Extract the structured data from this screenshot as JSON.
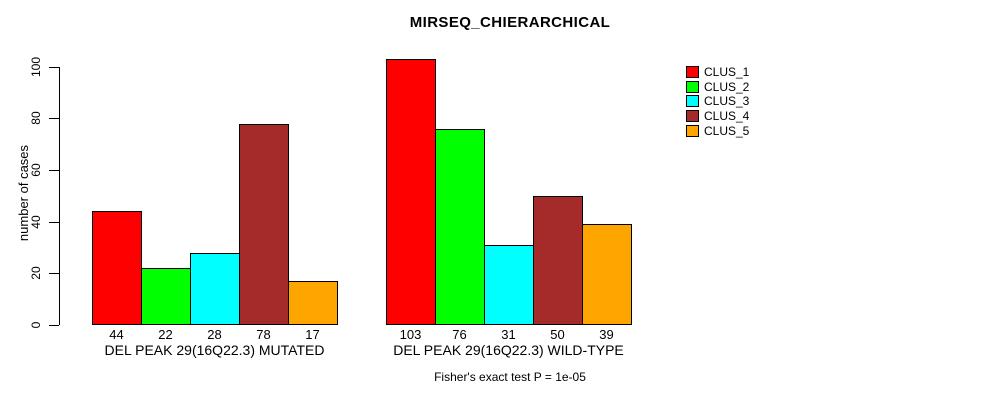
{
  "chart_data": {
    "type": "bar",
    "title": "MIRSEQ_CHIERARCHICAL",
    "ylabel": "number of cases",
    "xlabel": "",
    "ylim": [
      0,
      100
    ],
    "yticks": [
      0,
      20,
      40,
      60,
      80,
      100
    ],
    "grid": false,
    "legend_position": "top-right",
    "bar_value_labels_shown": true,
    "categories": [
      "DEL PEAK 29(16Q22.3) MUTATED",
      "DEL PEAK 29(16Q22.3) WILD-TYPE"
    ],
    "series": [
      {
        "name": "CLUS_1",
        "color": "#FF0000",
        "values": [
          44,
          103
        ]
      },
      {
        "name": "CLUS_2",
        "color": "#00FF00",
        "values": [
          22,
          76
        ]
      },
      {
        "name": "CLUS_3",
        "color": "#00FFFF",
        "values": [
          28,
          31
        ]
      },
      {
        "name": "CLUS_4",
        "color": "#A52A2A",
        "values": [
          78,
          50
        ]
      },
      {
        "name": "CLUS_5",
        "color": "#FFA500",
        "values": [
          17,
          39
        ]
      }
    ],
    "annotation": "Fisher's exact test P = 1e-05"
  },
  "colors": {
    "foreground": "#000000",
    "background": "#FFFFFF"
  }
}
